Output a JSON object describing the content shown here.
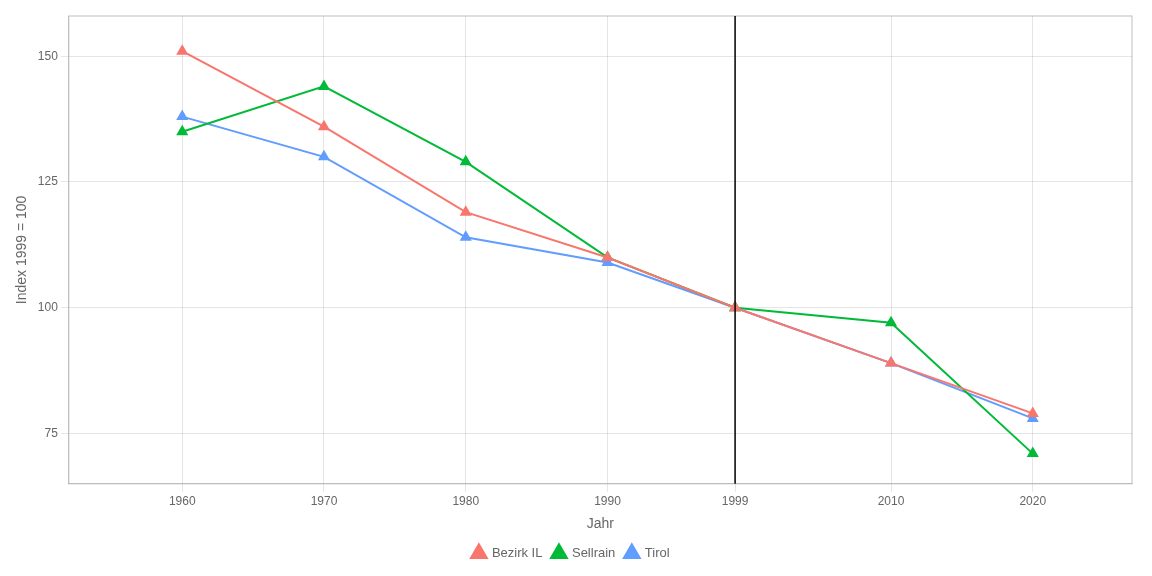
{
  "chart_data": {
    "type": "line",
    "xlabel": "Jahr",
    "ylabel": "Index 1999 = 100",
    "x": [
      1960,
      1970,
      1980,
      1990,
      1999,
      2010,
      2020
    ],
    "series": [
      {
        "name": "Bezirk IL",
        "color": "#F8766D",
        "values": [
          151,
          136,
          119,
          110,
          100,
          89,
          79
        ]
      },
      {
        "name": "Sellrain",
        "color": "#00BA38",
        "values": [
          135,
          144,
          129,
          110,
          100,
          97,
          71
        ]
      },
      {
        "name": "Tirol",
        "color": "#619CFF",
        "values": [
          138,
          130,
          114,
          109,
          100,
          89,
          78
        ]
      }
    ],
    "marker": "triangle",
    "vline": 1999,
    "xlim": [
      1952,
      2027
    ],
    "xticks": [
      1960,
      1970,
      1980,
      1990,
      1999,
      2010,
      2020
    ],
    "ylim": [
      65,
      158
    ],
    "yticks": [
      75,
      100,
      125,
      150
    ],
    "grid": true,
    "legend": "bottom"
  }
}
